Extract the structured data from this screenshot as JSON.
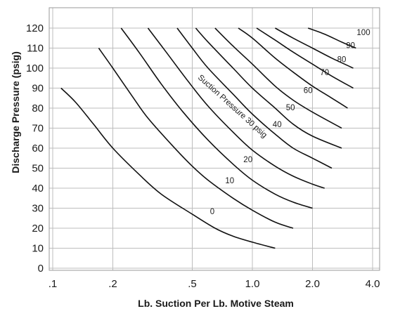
{
  "chart_data": {
    "type": "line",
    "title": "",
    "xlabel": "Lb. Suction Per Lb. Motive Steam",
    "ylabel": "Discharge Pressure (psig)",
    "x_scale": "log",
    "x_range": [
      0.1,
      4.0
    ],
    "y_range": [
      0,
      125
    ],
    "x_ticks": [
      0.1,
      0.2,
      0.5,
      1.0,
      2.0,
      4.0
    ],
    "x_tick_labels": [
      ".1",
      ".2",
      ".5",
      "1.0",
      "2.0",
      "4.0"
    ],
    "y_ticks": [
      0,
      10,
      20,
      30,
      40,
      50,
      60,
      70,
      80,
      90,
      100,
      110,
      120
    ],
    "y_tick_labels": [
      "0",
      "10",
      "20",
      "30",
      "40",
      "50",
      "60",
      "70",
      "80",
      "90",
      "100",
      "110",
      "120"
    ],
    "grid": true,
    "series": [
      {
        "name": "0",
        "points": [
          [
            0.11,
            90
          ],
          [
            0.13,
            83
          ],
          [
            0.16,
            72
          ],
          [
            0.2,
            60
          ],
          [
            0.27,
            47
          ],
          [
            0.35,
            37
          ],
          [
            0.5,
            27
          ],
          [
            0.65,
            20
          ],
          [
            0.8,
            16
          ],
          [
            1.0,
            13
          ],
          [
            1.3,
            10
          ]
        ]
      },
      {
        "name": "10",
        "points": [
          [
            0.17,
            110
          ],
          [
            0.2,
            100
          ],
          [
            0.25,
            86
          ],
          [
            0.3,
            75
          ],
          [
            0.4,
            61
          ],
          [
            0.5,
            51
          ],
          [
            0.6,
            44
          ],
          [
            0.8,
            35
          ],
          [
            1.0,
            29
          ],
          [
            1.3,
            23
          ],
          [
            1.6,
            20
          ]
        ]
      },
      {
        "name": "20",
        "points": [
          [
            0.22,
            120
          ],
          [
            0.27,
            108
          ],
          [
            0.35,
            92
          ],
          [
            0.45,
            78
          ],
          [
            0.6,
            64
          ],
          [
            0.8,
            52
          ],
          [
            1.0,
            44
          ],
          [
            1.3,
            37
          ],
          [
            1.6,
            33
          ],
          [
            2.0,
            30
          ]
        ]
      },
      {
        "name": "Suction Pressure 30 psig",
        "points": [
          [
            0.3,
            120
          ],
          [
            0.37,
            108
          ],
          [
            0.48,
            93
          ],
          [
            0.6,
            81
          ],
          [
            0.8,
            68
          ],
          [
            1.0,
            59
          ],
          [
            1.3,
            51
          ],
          [
            1.6,
            46
          ],
          [
            2.0,
            42
          ],
          [
            2.3,
            40
          ]
        ]
      },
      {
        "name": "40",
        "points": [
          [
            0.42,
            120
          ],
          [
            0.5,
            110
          ],
          [
            0.6,
            100
          ],
          [
            0.8,
            87
          ],
          [
            1.0,
            77
          ],
          [
            1.3,
            67
          ],
          [
            1.6,
            60
          ],
          [
            2.0,
            55
          ],
          [
            2.5,
            50
          ]
        ]
      },
      {
        "name": "50",
        "points": [
          [
            0.52,
            120
          ],
          [
            0.6,
            113
          ],
          [
            0.8,
            100
          ],
          [
            1.0,
            90
          ],
          [
            1.3,
            80
          ],
          [
            1.6,
            72
          ],
          [
            2.0,
            66
          ],
          [
            2.8,
            60
          ]
        ]
      },
      {
        "name": "60",
        "points": [
          [
            0.65,
            120
          ],
          [
            0.8,
            111
          ],
          [
            1.0,
            102
          ],
          [
            1.3,
            91
          ],
          [
            1.6,
            84
          ],
          [
            2.0,
            78
          ],
          [
            2.8,
            70
          ]
        ]
      },
      {
        "name": "70",
        "points": [
          [
            0.85,
            120
          ],
          [
            1.0,
            115
          ],
          [
            1.3,
            105
          ],
          [
            1.6,
            98
          ],
          [
            2.0,
            91
          ],
          [
            2.5,
            85
          ],
          [
            3.0,
            80
          ]
        ]
      },
      {
        "name": "80",
        "points": [
          [
            1.05,
            120
          ],
          [
            1.3,
            114
          ],
          [
            1.6,
            108
          ],
          [
            2.0,
            102
          ],
          [
            2.5,
            96
          ],
          [
            3.2,
            90
          ]
        ]
      },
      {
        "name": "90",
        "points": [
          [
            1.3,
            120
          ],
          [
            1.6,
            115
          ],
          [
            2.0,
            110
          ],
          [
            2.5,
            105
          ],
          [
            3.2,
            100
          ]
        ]
      },
      {
        "name": "100",
        "points": [
          [
            1.9,
            120
          ],
          [
            2.3,
            117
          ],
          [
            2.8,
            113
          ],
          [
            3.3,
            110
          ]
        ]
      }
    ],
    "curve_labels": [
      {
        "text": "0",
        "x": 0.63,
        "y": 27
      },
      {
        "text": "10",
        "x": 0.77,
        "y": 42.5
      },
      {
        "text": "20",
        "x": 0.95,
        "y": 53
      },
      {
        "text": "Suction Pressure 30 psig",
        "x": 0.78,
        "y": 80,
        "rotation": 42
      },
      {
        "text": "40",
        "x": 1.33,
        "y": 70.5
      },
      {
        "text": "50",
        "x": 1.55,
        "y": 79
      },
      {
        "text": "60",
        "x": 1.9,
        "y": 87.5
      },
      {
        "text": "70",
        "x": 2.3,
        "y": 96.5
      },
      {
        "text": "80",
        "x": 2.8,
        "y": 103
      },
      {
        "text": "90",
        "x": 3.1,
        "y": 110
      },
      {
        "text": "100",
        "x": 3.6,
        "y": 116.5
      }
    ]
  }
}
